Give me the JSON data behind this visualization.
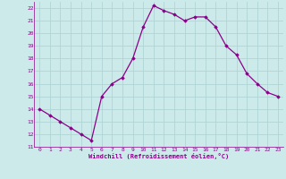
{
  "x": [
    0,
    1,
    2,
    3,
    4,
    5,
    6,
    7,
    8,
    9,
    10,
    11,
    12,
    13,
    14,
    15,
    16,
    17,
    18,
    19,
    20,
    21,
    22,
    23
  ],
  "y": [
    14.0,
    13.5,
    13.0,
    12.5,
    12.0,
    11.5,
    15.0,
    16.0,
    16.5,
    18.0,
    20.5,
    22.2,
    21.8,
    21.5,
    21.0,
    21.3,
    21.3,
    20.5,
    19.0,
    18.3,
    16.8,
    16.0,
    15.3,
    15.0
  ],
  "line_color": "#8B008B",
  "marker": "D",
  "marker_size": 1.8,
  "bg_color": "#cceaea",
  "grid_color": "#b0d4d4",
  "xlabel": "Windchill (Refroidissement éolien,°C)",
  "xlabel_color": "#8B008B",
  "tick_color": "#8B008B",
  "ylim": [
    11,
    22.5
  ],
  "xlim": [
    -0.5,
    23.5
  ],
  "yticks": [
    11,
    12,
    13,
    14,
    15,
    16,
    17,
    18,
    19,
    20,
    21,
    22
  ],
  "xticks": [
    0,
    1,
    2,
    3,
    4,
    5,
    6,
    7,
    8,
    9,
    10,
    11,
    12,
    13,
    14,
    15,
    16,
    17,
    18,
    19,
    20,
    21,
    22,
    23
  ]
}
